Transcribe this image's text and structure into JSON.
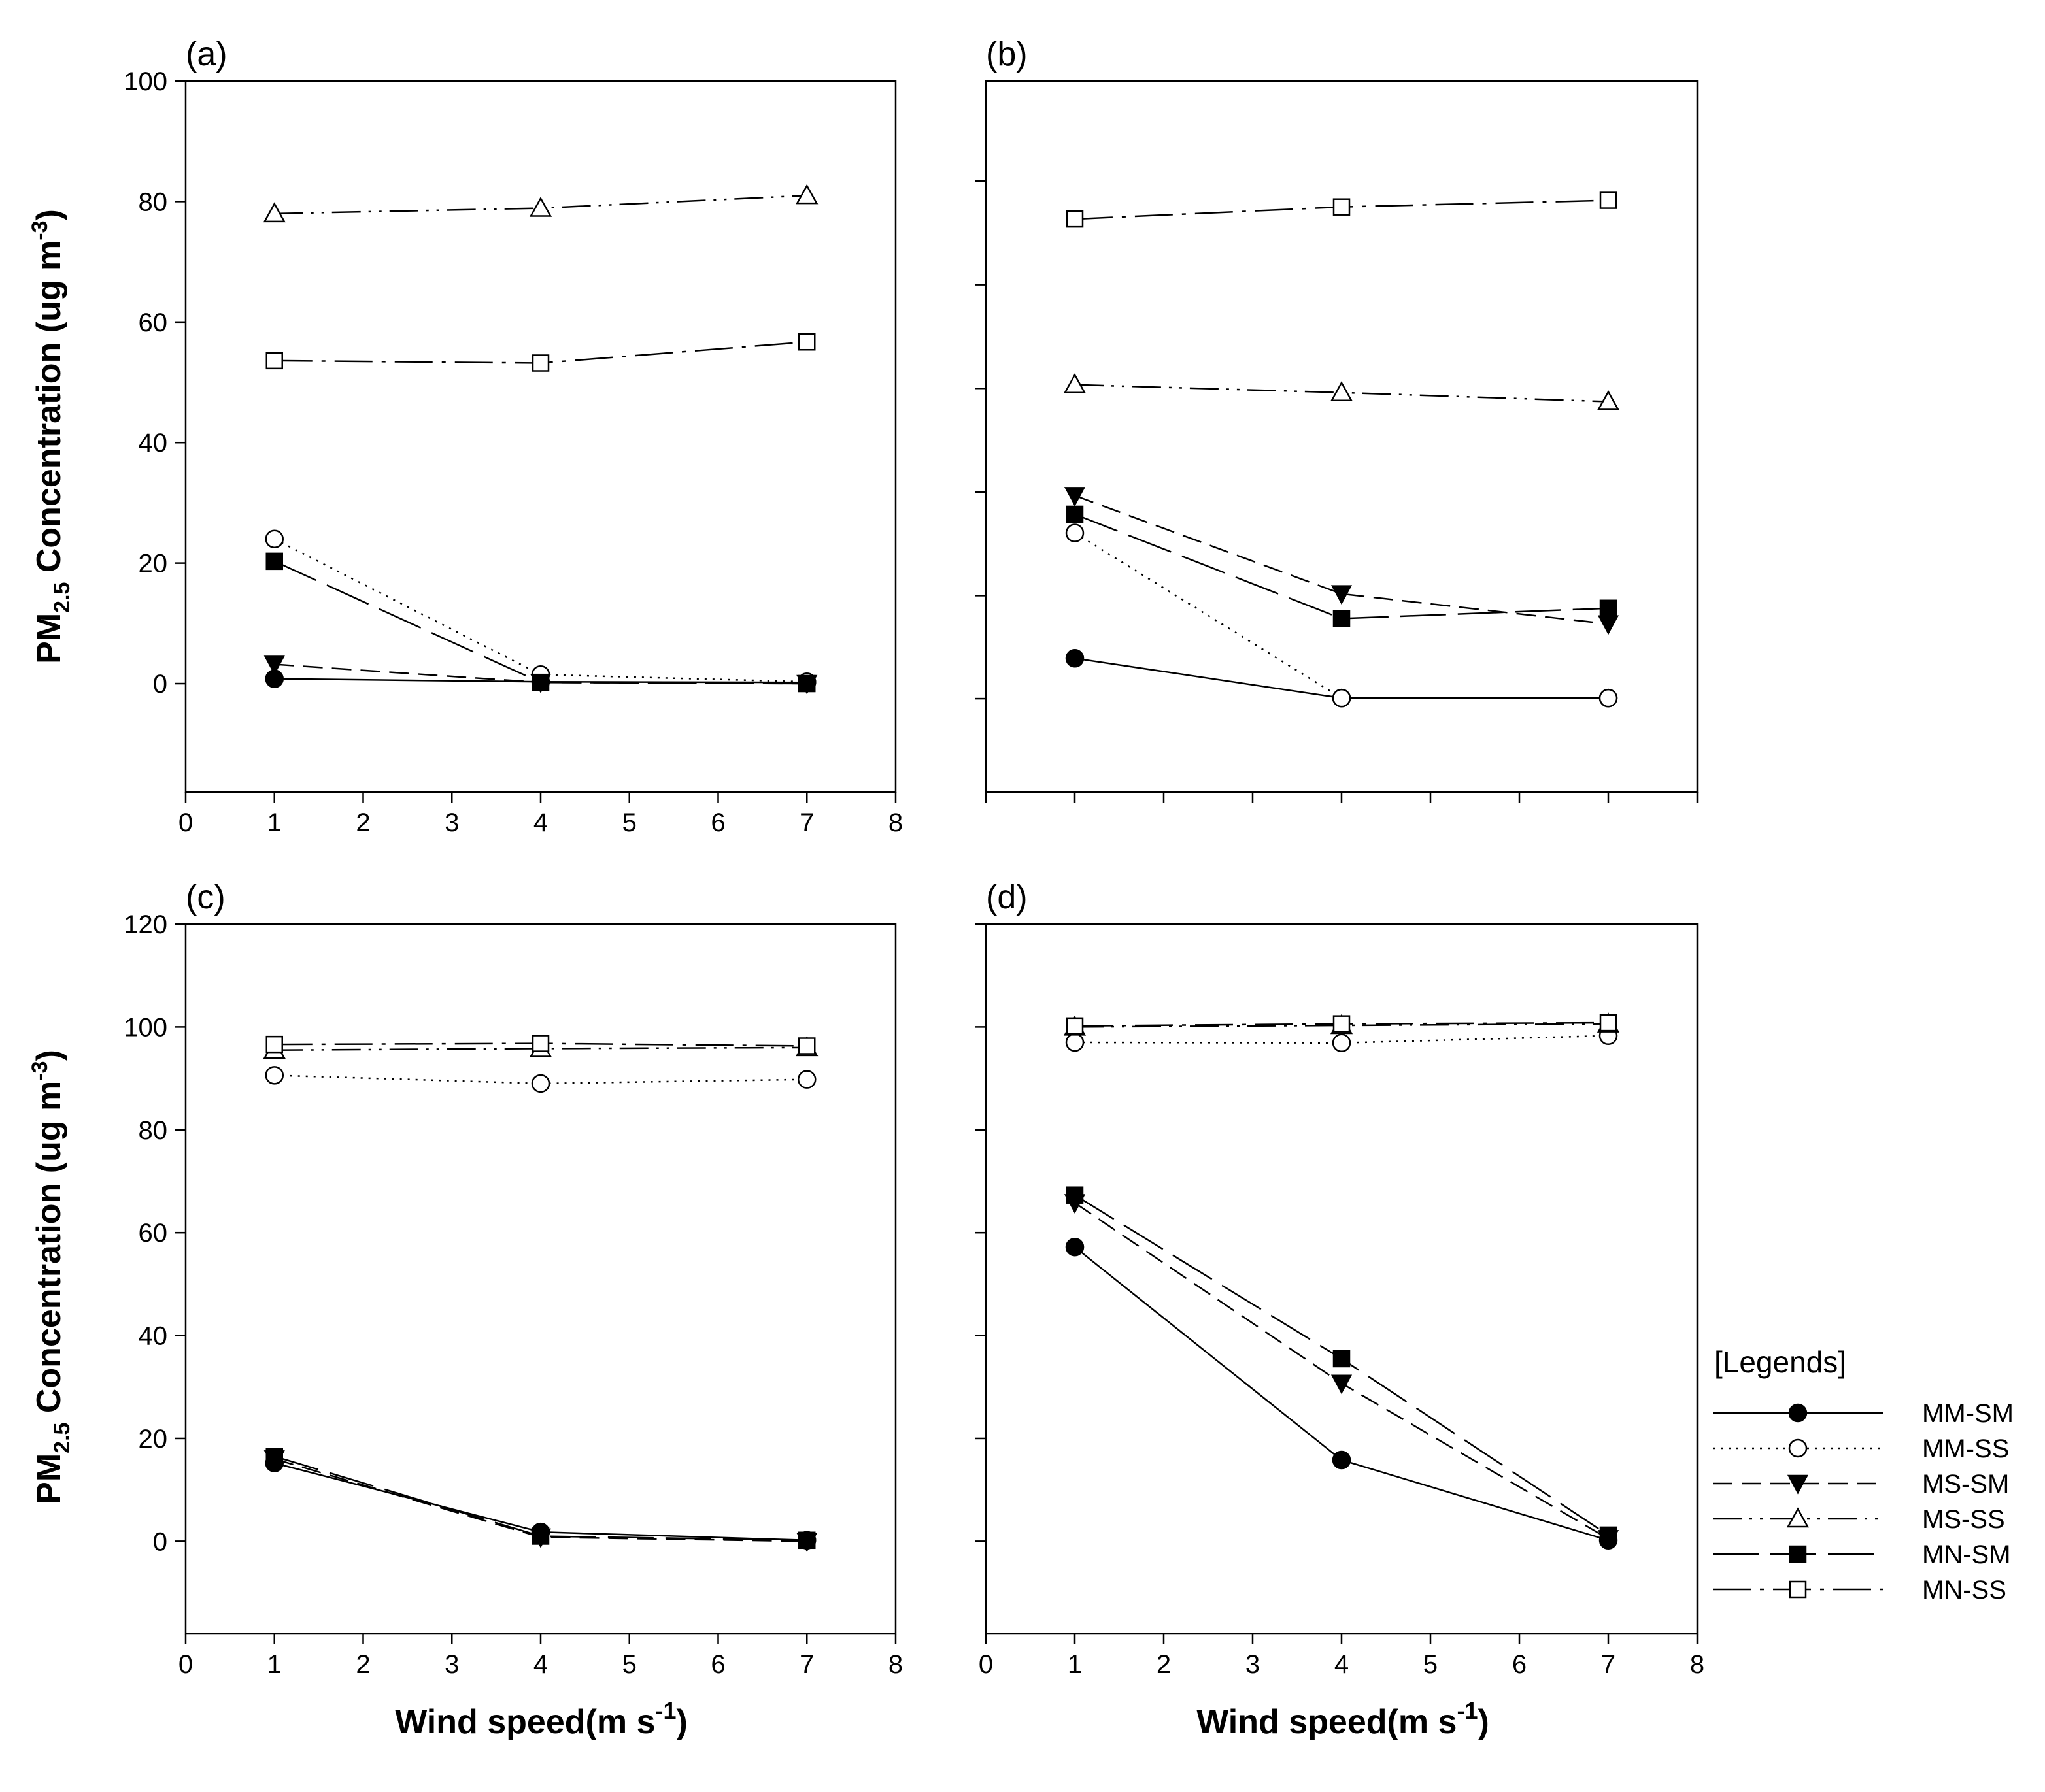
{
  "chart_data": {
    "type": "line",
    "series_styles": [
      {
        "name": "MM-SM",
        "marker": "filled-circle",
        "line": "solid"
      },
      {
        "name": "MM-SS",
        "marker": "open-circle",
        "line": "dotted"
      },
      {
        "name": "MS-SM",
        "marker": "filled-triangle-down",
        "line": "short-dash"
      },
      {
        "name": "MS-SS",
        "marker": "open-triangle-up",
        "line": "dash-dot-dot"
      },
      {
        "name": "MN-SM",
        "marker": "filled-square",
        "line": "long-dash"
      },
      {
        "name": "MN-SS",
        "marker": "open-square",
        "line": "dash-dot"
      }
    ],
    "x_label": "Wind speed(m s",
    "x_label_sup": "-1",
    "x_label_end": ")",
    "y_label_pre": "PM",
    "y_label_sub": "2.5",
    "y_label_mid": " Concentration (ug m",
    "y_label_sup": "-3",
    "y_label_end": ")",
    "legend_title": "[Legends]",
    "legend_placement": "right of panel (d)",
    "panels": [
      {
        "label": "(a)",
        "xlim": [
          0,
          8
        ],
        "ylim": [
          -18,
          100
        ],
        "xticks": [
          0,
          1,
          2,
          3,
          4,
          5,
          6,
          7,
          8
        ],
        "xtick_labels": [
          "0",
          "1",
          "2",
          "3",
          "4",
          "5",
          "6",
          "7",
          "8"
        ],
        "yticks": [
          0,
          20,
          40,
          60,
          80,
          100
        ],
        "ytick_labels": [
          "0",
          "20",
          "40",
          "60",
          "80",
          "100"
        ],
        "x": [
          1,
          4,
          7
        ],
        "series": [
          {
            "name": "MM-SM",
            "values": [
              0.8,
              0.3,
              0.2
            ]
          },
          {
            "name": "MM-SS",
            "values": [
              24.0,
              1.5,
              0.3
            ]
          },
          {
            "name": "MS-SM",
            "values": [
              3.2,
              0.2,
              0.0
            ]
          },
          {
            "name": "MS-SS",
            "values": [
              78.0,
              78.9,
              81.0
            ]
          },
          {
            "name": "MN-SM",
            "values": [
              20.3,
              0.2,
              0.0
            ]
          },
          {
            "name": "MN-SS",
            "values": [
              53.6,
              53.2,
              56.7
            ]
          }
        ]
      },
      {
        "label": "(b)",
        "xlim": [
          0,
          8
        ],
        "ylim": [
          -18,
          100
        ],
        "xticks": [
          0,
          1,
          2,
          3,
          4,
          5,
          6,
          7,
          8
        ],
        "xtick_labels": [],
        "yticks": [
          -2.5,
          14.6,
          31.8,
          49.0,
          66.2,
          83.4
        ],
        "ytick_labels": [],
        "x": [
          1,
          4,
          7
        ],
        "series": [
          {
            "name": "MM-SM",
            "values": [
              4.2,
              -2.4,
              -2.4
            ]
          },
          {
            "name": "MM-SS",
            "values": [
              25.0,
              -2.4,
              -2.4
            ]
          },
          {
            "name": "MS-SM",
            "values": [
              31.2,
              14.9,
              9.9
            ]
          },
          {
            "name": "MS-SS",
            "values": [
              49.6,
              48.3,
              46.8
            ]
          },
          {
            "name": "MN-SM",
            "values": [
              28.1,
              10.8,
              12.5
            ]
          },
          {
            "name": "MN-SS",
            "values": [
              77.1,
              79.1,
              80.2
            ]
          }
        ]
      },
      {
        "label": "(c)",
        "xlim": [
          0,
          8
        ],
        "ylim": [
          -18,
          120
        ],
        "xticks": [
          0,
          1,
          2,
          3,
          4,
          5,
          6,
          7,
          8
        ],
        "xtick_labels": [
          "0",
          "1",
          "2",
          "3",
          "4",
          "5",
          "6",
          "7",
          "8"
        ],
        "yticks": [
          0,
          20,
          40,
          60,
          80,
          100,
          120
        ],
        "ytick_labels": [
          "0",
          "20",
          "40",
          "60",
          "80",
          "100",
          "120"
        ],
        "x": [
          1,
          4,
          7
        ],
        "series": [
          {
            "name": "MM-SM",
            "values": [
              15.2,
              1.8,
              0.2
            ]
          },
          {
            "name": "MM-SS",
            "values": [
              90.6,
              89.0,
              89.8
            ]
          },
          {
            "name": "MS-SM",
            "values": [
              16.0,
              0.8,
              0.0
            ]
          },
          {
            "name": "MS-SS",
            "values": [
              95.5,
              95.8,
              96.0
            ]
          },
          {
            "name": "MN-SM",
            "values": [
              16.5,
              1.0,
              0.2
            ]
          },
          {
            "name": "MN-SS",
            "values": [
              96.6,
              96.8,
              96.3
            ]
          }
        ]
      },
      {
        "label": "(d)",
        "xlim": [
          0,
          8
        ],
        "ylim": [
          -18,
          120
        ],
        "xticks": [
          0,
          1,
          2,
          3,
          4,
          5,
          6,
          7,
          8
        ],
        "xtick_labels": [
          "0",
          "1",
          "2",
          "3",
          "4",
          "5",
          "6",
          "7",
          "8"
        ],
        "yticks": [
          0,
          20,
          40,
          60,
          80,
          100,
          120
        ],
        "ytick_labels": [],
        "x": [
          1,
          4,
          7
        ],
        "series": [
          {
            "name": "MM-SM",
            "values": [
              57.2,
              15.8,
              0.2
            ]
          },
          {
            "name": "MM-SS",
            "values": [
              97.0,
              96.9,
              98.3
            ]
          },
          {
            "name": "MS-SM",
            "values": [
              65.8,
              30.7,
              0.5
            ]
          },
          {
            "name": "MS-SS",
            "values": [
              100.0,
              100.3,
              100.6
            ]
          },
          {
            "name": "MN-SM",
            "values": [
              67.3,
              35.5,
              1.2
            ]
          },
          {
            "name": "MN-SS",
            "values": [
              100.2,
              100.6,
              100.8
            ]
          }
        ]
      }
    ]
  }
}
